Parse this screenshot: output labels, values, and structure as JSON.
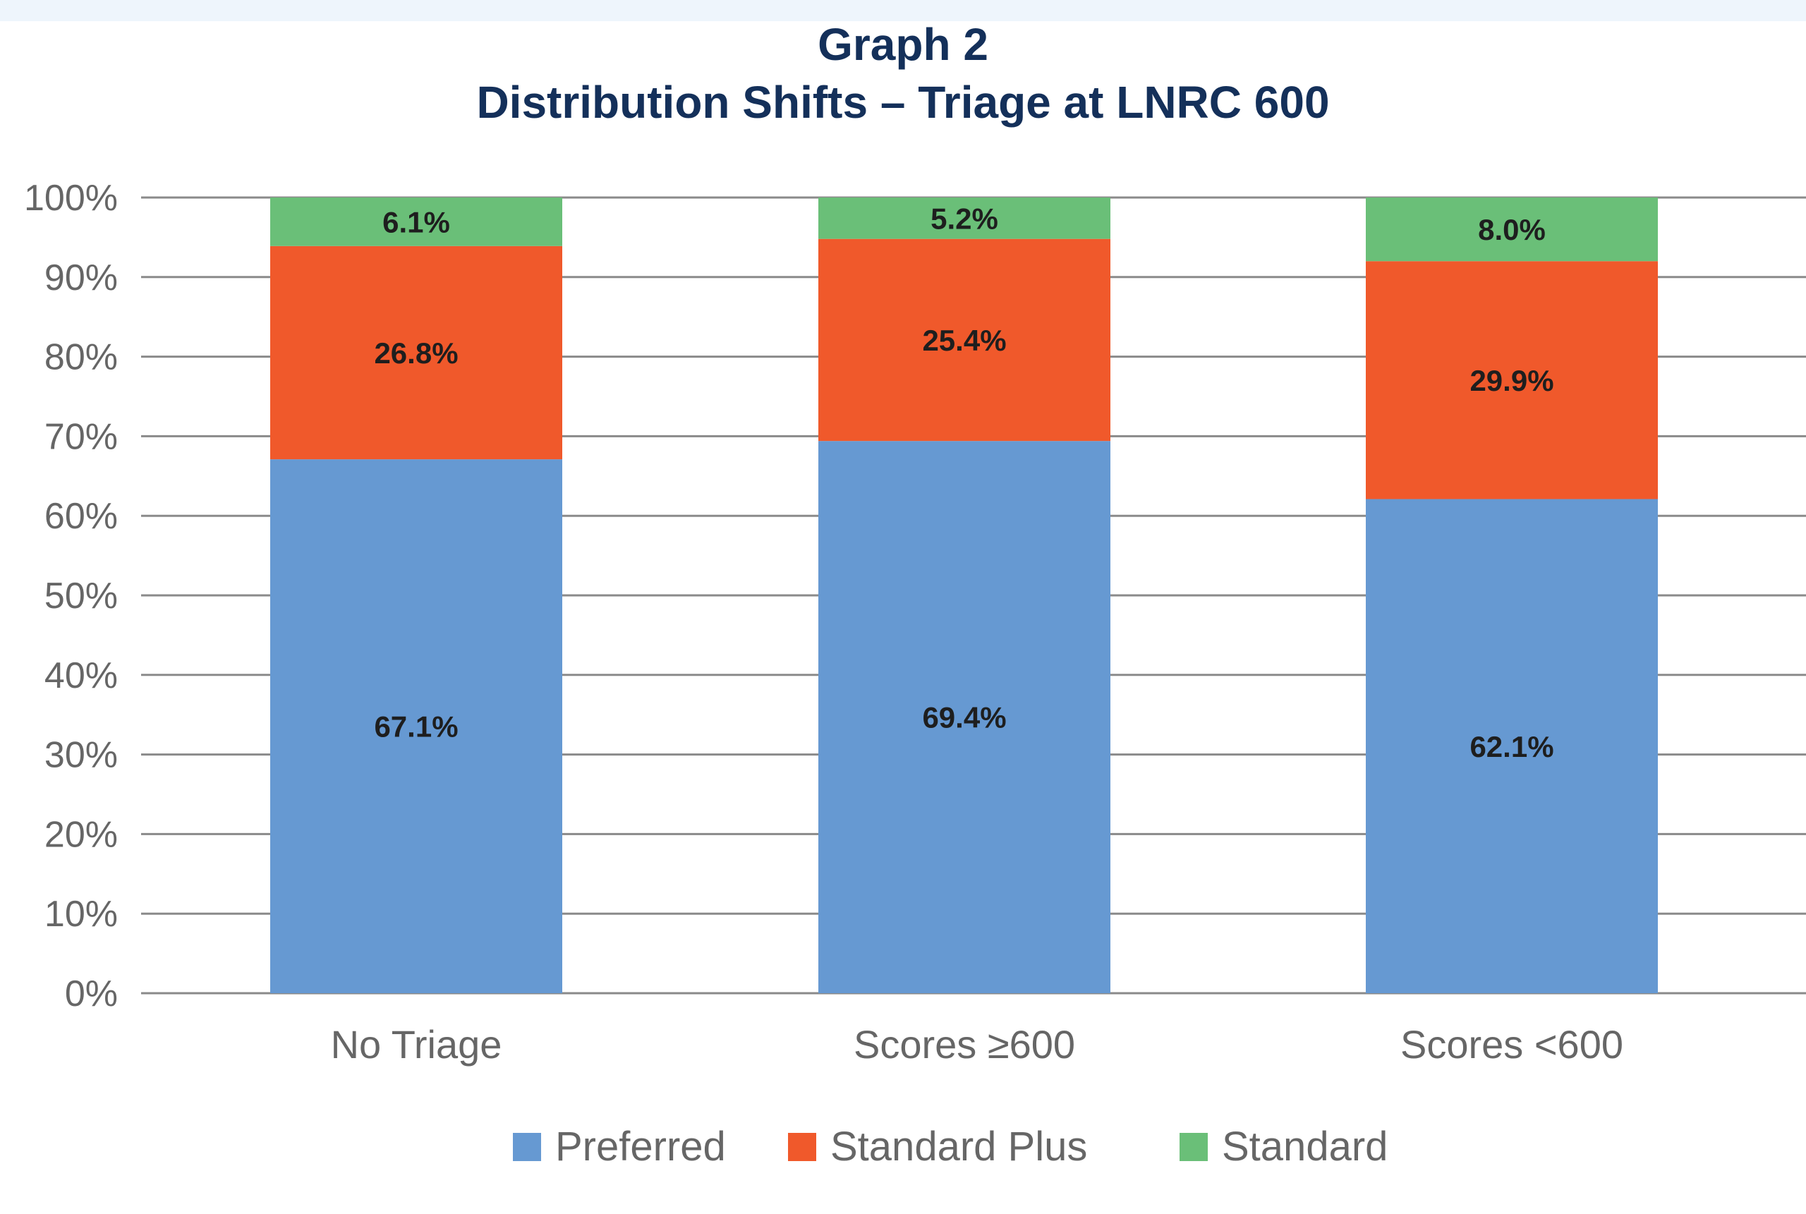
{
  "chart_data": {
    "type": "bar",
    "stacked": true,
    "title": "Graph 2",
    "subtitle": "Distribution Shifts – Triage at LNRC 600",
    "categories": [
      "No Triage",
      "Scores ≥600",
      "Scores <600"
    ],
    "series": [
      {
        "name": "Preferred",
        "color": "#6699d2",
        "values": [
          67.1,
          69.4,
          62.1
        ],
        "labels": [
          "67.1%",
          "69.4%",
          "62.1%"
        ]
      },
      {
        "name": "Standard Plus",
        "color": "#f0592b",
        "values": [
          26.8,
          25.4,
          29.9
        ],
        "labels": [
          "26.8%",
          "25.4%",
          "29.9%"
        ]
      },
      {
        "name": "Standard",
        "color": "#6abf78",
        "values": [
          6.1,
          5.2,
          8.0
        ],
        "labels": [
          "6.1%",
          "5.2%",
          "8.0%"
        ]
      }
    ],
    "ylim": [
      0,
      100
    ],
    "yticks": [
      "0%",
      "10%",
      "20%",
      "30%",
      "40%",
      "50%",
      "60%",
      "70%",
      "80%",
      "90%",
      "100%"
    ],
    "grid": true,
    "legend": "bottom"
  }
}
